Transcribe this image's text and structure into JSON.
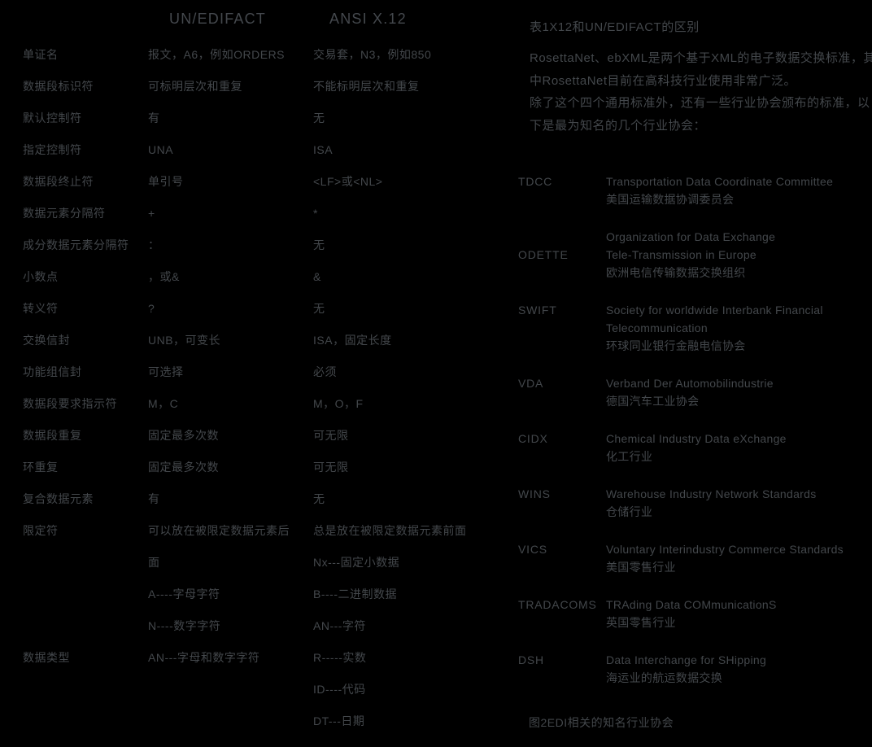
{
  "colors": {
    "background": "#000000",
    "text": "#43474b"
  },
  "table": {
    "col2_header": "UN/EDIFACT",
    "col3_header": "ANSI X.12",
    "rows": [
      {
        "label": "单证名",
        "edifact": [
          "报文，A6，例如ORDERS"
        ],
        "ansi": [
          "交易套，N3，例如850"
        ]
      },
      {
        "label": "数据段标识符",
        "edifact": [
          "可标明层次和重复"
        ],
        "ansi": [
          "不能标明层次和重复"
        ]
      },
      {
        "label": "默认控制符",
        "edifact": [
          "有"
        ],
        "ansi": [
          "无"
        ]
      },
      {
        "label": "指定控制符",
        "edifact": [
          "UNA"
        ],
        "ansi": [
          "ISA"
        ]
      },
      {
        "label": "数据段终止符",
        "edifact": [
          "单引号"
        ],
        "ansi": [
          "<LF>或<NL>"
        ]
      },
      {
        "label": "数据元素分隔符",
        "edifact": [
          "+"
        ],
        "ansi": [
          "*"
        ]
      },
      {
        "label": "成分数据元素分隔符",
        "edifact": [
          "："
        ],
        "ansi": [
          "无"
        ]
      },
      {
        "label": "小数点",
        "edifact": [
          "，或&"
        ],
        "ansi": [
          "&"
        ]
      },
      {
        "label": "转义符",
        "edifact": [
          "?"
        ],
        "ansi": [
          "无"
        ]
      },
      {
        "label": "交换信封",
        "edifact": [
          "UNB，可变长"
        ],
        "ansi": [
          "ISA，固定长度"
        ]
      },
      {
        "label": "功能组信封",
        "edifact": [
          "可选择"
        ],
        "ansi": [
          "必须"
        ]
      },
      {
        "label": "数据段要求指示符",
        "edifact": [
          "M，C"
        ],
        "ansi": [
          "M，O，F"
        ]
      },
      {
        "label": "数据段重复",
        "edifact": [
          "固定最多次数"
        ],
        "ansi": [
          "可无限"
        ]
      },
      {
        "label": "环重复",
        "edifact": [
          "固定最多次数"
        ],
        "ansi": [
          "可无限"
        ]
      },
      {
        "label": "复合数据元素",
        "edifact": [
          "有"
        ],
        "ansi": [
          "无"
        ]
      },
      {
        "label": "限定符",
        "edifact": [
          "可以放在被限定数据元素后",
          "面"
        ],
        "ansi": [
          "总是放在被限定数据元素前面",
          "Nx---固定小数据"
        ]
      },
      {
        "label": "数据类型",
        "edifact": [
          "A----字母字符",
          "N----数字字符",
          "AN---字母和数字字符"
        ],
        "ansi": [
          "B----二进制数据",
          "AN---字符",
          "R-----实数",
          "ID----代码",
          "DT---日期"
        ]
      }
    ]
  },
  "notes": {
    "title": "表1X12和UN/EDIFACT的区别",
    "paragraphs": [
      [
        "RosettaNet、ebXML是两个基于XML的电子数据交换标准，其",
        "中RosettaNet目前在高科技行业使用非常广泛。"
      ],
      [
        "除了这个四个通用标准外，还有一些行业协会颁布的标准，以",
        "下是最为知名的几个行业协会："
      ]
    ],
    "associations": [
      {
        "acronym": "TDCC",
        "english": [
          "Transportation Data Coordinate Committee"
        ],
        "chinese": "美国运输数据协调委员会"
      },
      {
        "acronym": "ODETTE",
        "english": [
          "Organization for Data Exchange",
          "Tele-Transmission in Europe"
        ],
        "chinese": "欧洲电信传输数据交换组织"
      },
      {
        "acronym": "SWIFT",
        "english": [
          "Society for worldwide Interbank Financial",
          "Telecommunication"
        ],
        "chinese": "环球同业银行金融电信协会"
      },
      {
        "acronym": "VDA",
        "english": [
          "Verband Der Automobilindustrie"
        ],
        "chinese": "德国汽车工业协会"
      },
      {
        "acronym": "CIDX",
        "english": [
          "Chemical Industry Data eXchange"
        ],
        "chinese": "化工行业"
      },
      {
        "acronym": "WINS",
        "english": [
          "Warehouse Industry Network Standards"
        ],
        "chinese": "仓储行业"
      },
      {
        "acronym": "VICS",
        "english": [
          "Voluntary Interindustry Commerce Standards"
        ],
        "chinese": "美国零售行业"
      },
      {
        "acronym": "TRADACOMS",
        "english": [
          "TRAding Data COMmunicationS"
        ],
        "chinese": "英国零售行业"
      },
      {
        "acronym": "DSH",
        "english": [
          "Data Interchange for SHipping"
        ],
        "chinese": "海运业的航运数据交换"
      }
    ],
    "figure_caption": "图2EDI相关的知名行业协会"
  }
}
